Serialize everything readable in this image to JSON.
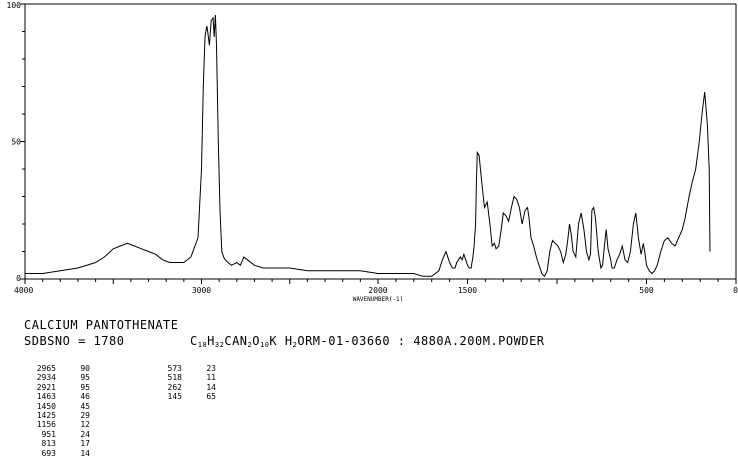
{
  "chart_data": {
    "type": "line",
    "title": "",
    "xlabel": "WAVENUMBER(-1)",
    "ylabel": "",
    "xlim": [
      4000,
      0
    ],
    "ylim": [
      0,
      100
    ],
    "x_ticks": [
      "4000",
      "3000",
      "2000",
      "1500",
      "500",
      "0"
    ],
    "y_ticks": [
      "100",
      "50",
      "0"
    ],
    "grid": false,
    "series": [
      {
        "x": [
          4000,
          3900,
          3800,
          3700,
          3600,
          3550,
          3500,
          3460,
          3420,
          3380,
          3340,
          3300,
          3260,
          3220,
          3180,
          3140,
          3100,
          3060,
          3020,
          3000,
          2990,
          2980,
          2970,
          2965,
          2955,
          2945,
          2934,
          2928,
          2921,
          2915,
          2905,
          2895,
          2885,
          2875,
          2865,
          2850,
          2830,
          2800,
          2780,
          2760,
          2740,
          2700,
          2650,
          2600,
          2550,
          2500,
          2400,
          2300,
          2200,
          2100,
          2000,
          1900,
          1800,
          1750,
          1720,
          1700,
          1680,
          1660,
          1640,
          1620,
          1600,
          1585,
          1570,
          1560,
          1550,
          1540,
          1530,
          1520,
          1510,
          1500,
          1490,
          1480,
          1470,
          1463,
          1455,
          1450,
          1445,
          1435,
          1420,
          1405,
          1390,
          1375,
          1362,
          1350,
          1340,
          1325,
          1312,
          1300,
          1285,
          1270,
          1255,
          1240,
          1225,
          1210,
          1195,
          1178,
          1165,
          1156,
          1145,
          1130,
          1115,
          1100,
          1085,
          1070,
          1055,
          1040,
          1025,
          1010,
          995,
          980,
          965,
          951,
          940,
          930,
          920,
          910,
          895,
          880,
          865,
          850,
          835,
          822,
          813,
          805,
          795,
          785,
          770,
          755,
          745,
          735,
          725,
          715,
          700,
          693,
          680,
          665,
          650,
          635,
          620,
          605,
          590,
          573,
          560,
          545,
          530,
          518,
          510,
          500,
          485,
          470,
          455,
          440,
          420,
          400,
          380,
          360,
          340,
          320,
          300,
          285,
          262,
          245,
          225,
          205,
          190,
          175,
          160,
          150,
          145
        ],
        "y": [
          2,
          2,
          3,
          4,
          6,
          8,
          11,
          12,
          13,
          12,
          11,
          10,
          9,
          7,
          6,
          6,
          6,
          8,
          15,
          40,
          70,
          88,
          92,
          90,
          85,
          94,
          95,
          88,
          96,
          85,
          50,
          25,
          10,
          8,
          7,
          6,
          5,
          6,
          5,
          8,
          7,
          5,
          4,
          4,
          4,
          4,
          3,
          3,
          3,
          3,
          2,
          2,
          2,
          1,
          1,
          1,
          2,
          3,
          7,
          10,
          6,
          4,
          4,
          6,
          7,
          8,
          7,
          9,
          7,
          5,
          4,
          4,
          8,
          12,
          20,
          35,
          46,
          45,
          35,
          26,
          28,
          20,
          12,
          13,
          11,
          12,
          18,
          24,
          23,
          21,
          26,
          30,
          29,
          26,
          20,
          25,
          26,
          22,
          15,
          12,
          8,
          5,
          2,
          1,
          3,
          10,
          14,
          13,
          12,
          10,
          6,
          9,
          14,
          20,
          16,
          10,
          8,
          20,
          24,
          18,
          10,
          7,
          9,
          25,
          26,
          22,
          10,
          4,
          5,
          12,
          18,
          11,
          7,
          4,
          4,
          7,
          9,
          12,
          7,
          6,
          10,
          20,
          24,
          15,
          9,
          13,
          10,
          5,
          3,
          2,
          3,
          5,
          10,
          14,
          15,
          13,
          12,
          15,
          18,
          22,
          30,
          35,
          40,
          50,
          60,
          68,
          56,
          40,
          10
        ]
      }
    ]
  },
  "info": {
    "compound": "CALCIUM PANTOTHENATE",
    "sdbs": "SDBSNO = 1780",
    "formula": {
      "c": "C",
      "c_sub": "18",
      "h": "H",
      "h_sub": "32",
      "ca_n": "CAN",
      "n_sub": "2",
      "o": "O",
      "o_sub": "10",
      "k": "K",
      "h2": "H",
      "h2_sub": "2",
      "rest": "ORM-01-03660 : 4880A.200M.POWDER"
    }
  },
  "peaks": {
    "col1": [
      [
        "2965",
        "90"
      ],
      [
        "2934",
        "95"
      ],
      [
        "2921",
        "95"
      ],
      [
        "1463",
        "46"
      ],
      [
        "1450",
        "45"
      ],
      [
        "1425",
        "29"
      ],
      [
        "1156",
        "12"
      ],
      [
        "951",
        "24"
      ],
      [
        "813",
        "17"
      ],
      [
        "693",
        "14"
      ]
    ],
    "col2": [
      [
        "573",
        "23"
      ],
      [
        "518",
        "11"
      ],
      [
        "262",
        "14"
      ],
      [
        "145",
        "65"
      ]
    ]
  }
}
